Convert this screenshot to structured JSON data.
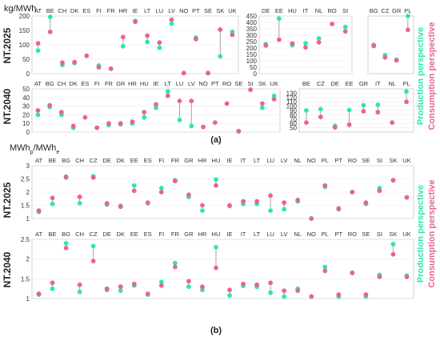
{
  "figure": {
    "panel_a_label": "(a)",
    "panel_b_label": "(b)",
    "unit_a": "kg/MWh",
    "unit_b_main": "MWh",
    "unit_b_sub1": "p",
    "unit_b_mid": "/MWh",
    "unit_b_sub2": "e",
    "legend_production": "Production perspective",
    "legend_consumption": "Consumption perspective",
    "row_label_2025": "NT.2025",
    "row_label_2040": "NT.2040",
    "color_production": "#2ee6b0",
    "color_consumption": "#e8629a"
  },
  "chart_data": [
    {
      "id": "a-2025-main",
      "type": "scatter",
      "ylim": [
        0,
        200
      ],
      "yticks": [
        0,
        50,
        100,
        150,
        200
      ],
      "categories": [
        "AT",
        "BE",
        "CH",
        "DK",
        "ES",
        "FI",
        "FR",
        "HR",
        "IE",
        "LT",
        "LU",
        "LV",
        "NO",
        "PT",
        "SE",
        "SK",
        "UK"
      ],
      "series": [
        {
          "name": "Production perspective",
          "values": [
            80,
            197,
            30,
            37,
            null,
            28,
            17,
            95,
            183,
            110,
            90,
            173,
            2,
            125,
            2,
            60,
            145
          ]
        },
        {
          "name": "Consumption perspective",
          "values": [
            105,
            145,
            38,
            40,
            62,
            22,
            17,
            127,
            180,
            132,
            108,
            187,
            2,
            120,
            2,
            153,
            135
          ]
        }
      ]
    },
    {
      "id": "a-2025-mid",
      "type": "scatter",
      "ylim": [
        0,
        450
      ],
      "yticks": [
        0,
        50,
        100,
        150,
        200,
        250,
        300,
        350,
        400,
        450
      ],
      "categories": [
        "DE",
        "EE",
        "HU",
        "IT",
        "NL",
        "RO",
        "SI"
      ],
      "series": [
        {
          "name": "Production perspective",
          "values": [
            230,
            430,
            222,
            237,
            275,
            null,
            365
          ]
        },
        {
          "name": "Consumption perspective",
          "values": [
            220,
            265,
            235,
            205,
            245,
            388,
            330
          ]
        }
      ]
    },
    {
      "id": "a-2025-right",
      "type": "scatter",
      "ylim": [
        400,
        650
      ],
      "categories": [
        "BG",
        "CZ",
        "GR",
        "PL"
      ],
      "series": [
        {
          "name": "Production perspective",
          "values": [
            525,
            480,
            460,
            650
          ]
        },
        {
          "name": "Consumption perspective",
          "values": [
            520,
            470,
            458,
            590
          ]
        }
      ]
    },
    {
      "id": "a-2040-main",
      "type": "scatter",
      "ylim": [
        0,
        50
      ],
      "yticks": [
        0,
        10,
        20,
        30,
        40,
        50
      ],
      "categories": [
        "AT",
        "BG",
        "CH",
        "DK",
        "ES",
        "FI",
        "FR",
        "GR",
        "HR",
        "HU",
        "IE",
        "LT",
        "LU",
        "LV",
        "NO",
        "PT",
        "RO",
        "SE",
        "SI",
        "SK",
        "UK"
      ],
      "series": [
        {
          "name": "Production perspective",
          "values": [
            20,
            29,
            20,
            5,
            null,
            5,
            8,
            9,
            10,
            17,
            28,
            47,
            14,
            7,
            null,
            null,
            null,
            1,
            null,
            28,
            42
          ]
        },
        {
          "name": "Consumption perspective",
          "values": [
            25,
            31,
            23,
            7,
            17,
            5,
            10,
            10,
            12,
            23,
            32,
            42,
            36,
            36,
            6,
            11,
            33,
            1,
            49,
            33,
            38
          ]
        }
      ]
    },
    {
      "id": "a-2040-right",
      "type": "scatter",
      "ylim": [
        40,
        140
      ],
      "yticks": [
        50,
        60,
        70,
        80,
        90,
        100,
        110,
        120,
        130
      ],
      "categories": [
        "BE",
        "CZ",
        "DE",
        "EE",
        "GR",
        "IT",
        "NL",
        "PL"
      ],
      "series": [
        {
          "name": "Production perspective",
          "values": [
            90,
            93,
            54,
            91,
            102,
            103,
            null,
            134
          ]
        },
        {
          "name": "Consumption perspective",
          "values": [
            62,
            75,
            51,
            57,
            88,
            86,
            62,
            110
          ]
        }
      ]
    },
    {
      "id": "b-2025",
      "type": "scatter",
      "ylim": [
        1,
        3
      ],
      "yticks": [
        1,
        1.5,
        2,
        2.5,
        3
      ],
      "categories": [
        "AT",
        "BE",
        "BG",
        "CH",
        "CZ",
        "DE",
        "DK",
        "EE",
        "ES",
        "FI",
        "FR",
        "GR",
        "HR",
        "HU",
        "IE",
        "IT",
        "LT",
        "LU",
        "LV",
        "NL",
        "NO",
        "PL",
        "PT",
        "RO",
        "SE",
        "SI",
        "SK",
        "UK"
      ],
      "series": [
        {
          "name": "Production perspective",
          "values": [
            1.25,
            1.55,
            2.55,
            1.58,
            2.6,
            1.53,
            1.48,
            2.25,
            1.58,
            2.15,
            2.45,
            1.82,
            1.3,
            2.48,
            1.47,
            1.55,
            1.55,
            1.3,
            1.35,
            1.65,
            1.0,
            2.2,
            1.35,
            2.0,
            1.55,
            2.15,
            2.45,
            1.8
          ]
        },
        {
          "name": "Consumption perspective",
          "values": [
            1.3,
            1.78,
            2.58,
            1.82,
            2.55,
            1.57,
            1.45,
            2.05,
            1.6,
            2.0,
            2.42,
            1.9,
            1.5,
            2.25,
            1.5,
            1.65,
            1.65,
            1.87,
            1.6,
            1.7,
            1.0,
            2.25,
            1.38,
            2.0,
            1.6,
            2.05,
            2.45,
            1.8
          ]
        }
      ]
    },
    {
      "id": "b-2040",
      "type": "scatter",
      "ylim": [
        1,
        2.5
      ],
      "yticks": [
        1,
        1.5,
        2,
        2.5
      ],
      "categories": [
        "AT",
        "BE",
        "BG",
        "CH",
        "CZ",
        "DE",
        "DK",
        "EE",
        "ES",
        "FI",
        "FR",
        "GR",
        "HR",
        "HU",
        "IE",
        "IT",
        "LT",
        "LU",
        "LV",
        "NL",
        "NO",
        "PL",
        "PT",
        "RO",
        "SE",
        "SI",
        "SK",
        "UK"
      ],
      "series": [
        {
          "name": "Production perspective",
          "values": [
            1.1,
            1.25,
            2.4,
            1.17,
            2.33,
            1.22,
            1.2,
            1.33,
            1.1,
            1.42,
            1.9,
            1.3,
            1.22,
            2.3,
            1.08,
            1.32,
            1.3,
            1.15,
            1.05,
            1.25,
            1.05,
            1.8,
            1.05,
            1.65,
            1.05,
            1.6,
            2.38,
            1.58
          ]
        },
        {
          "name": "Consumption perspective",
          "values": [
            1.12,
            1.4,
            2.28,
            1.35,
            1.95,
            1.25,
            1.3,
            1.37,
            1.12,
            1.33,
            1.8,
            1.44,
            1.3,
            1.78,
            1.22,
            1.37,
            1.35,
            1.4,
            1.2,
            1.2,
            1.05,
            1.7,
            1.1,
            1.65,
            1.1,
            1.55,
            2.12,
            1.55
          ]
        }
      ]
    }
  ]
}
